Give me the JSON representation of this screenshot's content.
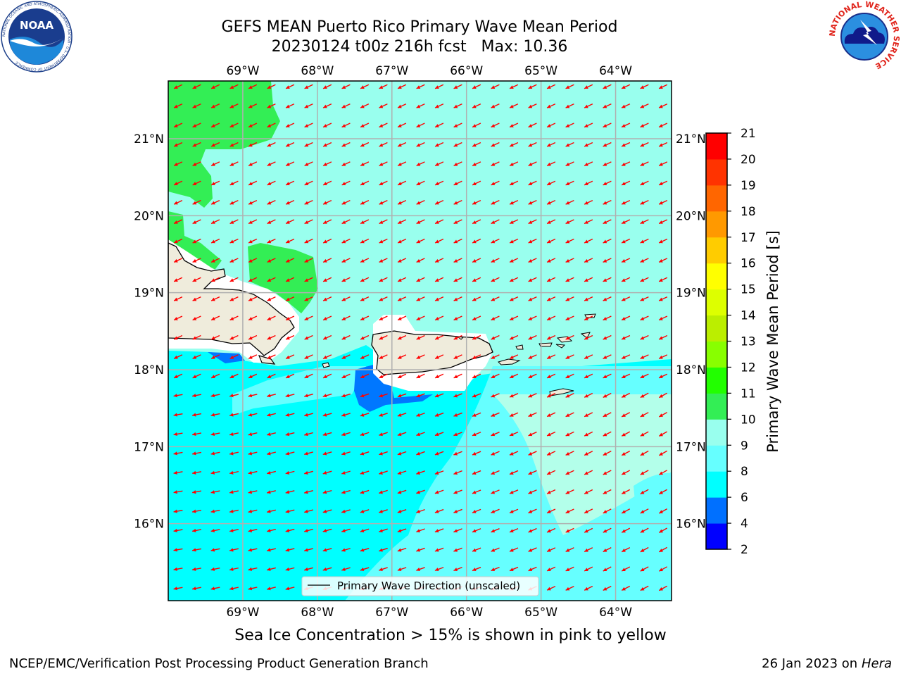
{
  "title": {
    "line1": "GEFS MEAN Puerto Rico Primary Wave Mean Period",
    "line2": "20230124 t00z 216h fcst   Max: 10.36"
  },
  "logos": {
    "noaa": {
      "text": "NOAA",
      "ring_text": "NATIONAL OCEANIC AND ATMOSPHERIC ADMINISTRATION · U.S. DEPARTMENT OF COMMERCE",
      "icon": "noaa-logo-icon"
    },
    "nws": {
      "ring_text": "NATIONAL WEATHER SERVICE",
      "icon": "nws-logo-icon"
    }
  },
  "map": {
    "lon_range": [
      -70.0,
      -63.25
    ],
    "lat_range": [
      15.0,
      21.75
    ],
    "lon_ticks": [
      {
        "value": -69,
        "label": "69°W"
      },
      {
        "value": -68,
        "label": "68°W"
      },
      {
        "value": -67,
        "label": "67°W"
      },
      {
        "value": -66,
        "label": "66°W"
      },
      {
        "value": -65,
        "label": "65°W"
      },
      {
        "value": -64,
        "label": "64°W"
      }
    ],
    "lat_ticks": [
      {
        "value": 21,
        "label": "21°N"
      },
      {
        "value": 20,
        "label": "20°N"
      },
      {
        "value": 19,
        "label": "19°N"
      },
      {
        "value": 18,
        "label": "18°N"
      },
      {
        "value": 17,
        "label": "17°N"
      },
      {
        "value": 16,
        "label": "16°N"
      }
    ],
    "gridlines": true,
    "legend": {
      "label": "Primary Wave Direction (unscaled)",
      "position": "bottom-center"
    },
    "arrow_color": "#ff0000",
    "land_color": "#efecdc"
  },
  "colorbar": {
    "label": "Primary Wave Mean Period [s]",
    "levels": [
      2,
      4,
      6,
      8,
      9,
      10,
      11,
      12,
      13,
      14,
      15,
      16,
      17,
      18,
      19,
      20,
      21
    ],
    "colors": [
      "#0000ff",
      "#0070ff",
      "#00ffff",
      "#66ffff",
      "#99ffee",
      "#33ee55",
      "#22ff00",
      "#88ff00",
      "#bbee00",
      "#ddff00",
      "#ffff00",
      "#ffcc00",
      "#ff9900",
      "#ff6600",
      "#ff3300",
      "#ff0000"
    ]
  },
  "chart_data": {
    "type": "heatmap",
    "title": "GEFS MEAN Puerto Rico Primary Wave Mean Period",
    "subtitle": "20230124 t00z 216h fcst   Max: 10.36",
    "zlabel": "Primary Wave Mean Period [s]",
    "max_value": 10.36,
    "xlim": [
      -70.0,
      -63.25
    ],
    "ylim": [
      15.0,
      21.75
    ]
  },
  "sea_ice_note": "Sea Ice Concentration > 15% is shown in pink to yellow",
  "footer": {
    "left": "NCEP/EMC/Verification Post Processing Product Generation Branch",
    "date": "26 Jan 2023 on ",
    "host": "Hera"
  }
}
